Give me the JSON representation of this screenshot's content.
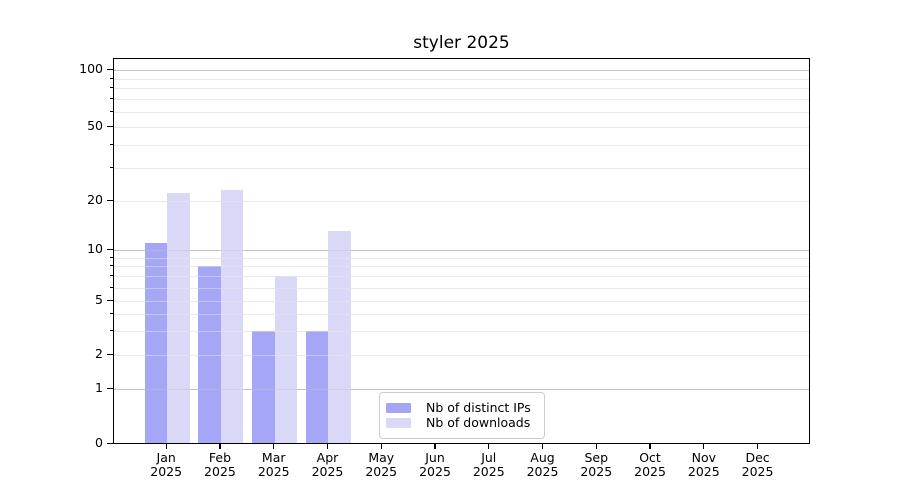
{
  "title": "styler 2025",
  "chart_data": {
    "type": "bar",
    "title": "styler 2025",
    "categories": [
      "Jan 2025",
      "Feb 2025",
      "Mar 2025",
      "Apr 2025",
      "May 2025",
      "Jun 2025",
      "Jul 2025",
      "Aug 2025",
      "Sep 2025",
      "Oct 2025",
      "Nov 2025",
      "Dec 2025"
    ],
    "x_tick_line1": [
      "Jan",
      "Feb",
      "Mar",
      "Apr",
      "May",
      "Jun",
      "Jul",
      "Aug",
      "Sep",
      "Oct",
      "Nov",
      "Dec"
    ],
    "x_tick_line2": [
      "2025",
      "2025",
      "2025",
      "2025",
      "2025",
      "2025",
      "2025",
      "2025",
      "2025",
      "2025",
      "2025",
      "2025"
    ],
    "series": [
      {
        "name": "Nb of distinct IPs",
        "color": "#a6a6f7",
        "values": [
          11,
          8,
          3,
          3,
          0,
          0,
          0,
          0,
          0,
          0,
          0,
          0
        ]
      },
      {
        "name": "Nb of downloads",
        "color": "#d9d9f7",
        "values": [
          22,
          23,
          7,
          13,
          0,
          0,
          0,
          0,
          0,
          0,
          0,
          0
        ]
      }
    ],
    "y_axis": {
      "scale": "symlog",
      "ticks": [
        0,
        1,
        2,
        5,
        10,
        20,
        50,
        100
      ],
      "major_gridlines": [
        1,
        10,
        100
      ],
      "minor_gridlines": [
        2,
        3,
        4,
        5,
        6,
        7,
        8,
        9,
        20,
        30,
        40,
        50,
        60,
        70,
        80,
        90
      ],
      "range": [
        0,
        100
      ]
    },
    "legend": {
      "entries": [
        "Nb of distinct IPs",
        "Nb of downloads"
      ],
      "position": "lower center"
    },
    "grid": {
      "enabled": true,
      "major_color": "#c3c3c3",
      "minor_color": "#e9e9e9"
    }
  }
}
